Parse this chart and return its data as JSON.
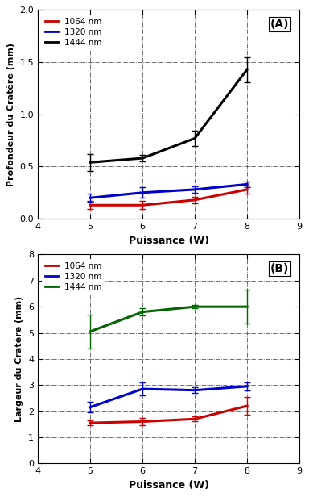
{
  "top_panel": {
    "title": "(A)",
    "ylabel": "Profondeur du Cratère (mm)",
    "xlabel": "Puissance (W)",
    "xlim": [
      4,
      9
    ],
    "ylim": [
      0,
      2
    ],
    "yticks": [
      0,
      0.5,
      1.0,
      1.5,
      2.0
    ],
    "xticks": [
      4,
      5,
      6,
      7,
      8,
      9
    ],
    "series": [
      {
        "label": "1064 nm",
        "color": "#cc0000",
        "x": [
          5,
          6,
          7,
          8
        ],
        "y": [
          0.13,
          0.13,
          0.18,
          0.28
        ],
        "yerr": [
          0.04,
          0.04,
          0.03,
          0.04
        ]
      },
      {
        "label": "1320 nm",
        "color": "#0000cc",
        "x": [
          5,
          6,
          7,
          8
        ],
        "y": [
          0.2,
          0.25,
          0.28,
          0.33
        ],
        "yerr": [
          0.04,
          0.05,
          0.03,
          0.03
        ]
      },
      {
        "label": "1444 nm",
        "color": "#000000",
        "x": [
          5,
          6,
          7,
          8
        ],
        "y": [
          0.54,
          0.58,
          0.77,
          1.43
        ],
        "yerr": [
          0.08,
          0.03,
          0.07,
          0.12
        ]
      }
    ]
  },
  "bottom_panel": {
    "title": "(B)",
    "ylabel": "Largeur du Cratère (mm)",
    "xlabel": "Puissance (W)",
    "xlim": [
      4,
      9
    ],
    "ylim": [
      0,
      8
    ],
    "yticks": [
      0,
      1,
      2,
      3,
      4,
      5,
      6,
      7,
      8
    ],
    "xticks": [
      4,
      5,
      6,
      7,
      8,
      9
    ],
    "series": [
      {
        "label": "1064 nm",
        "color": "#cc0000",
        "x": [
          5,
          6,
          7,
          8
        ],
        "y": [
          1.55,
          1.6,
          1.7,
          2.2
        ],
        "yerr": [
          0.1,
          0.15,
          0.1,
          0.35
        ]
      },
      {
        "label": "1320 nm",
        "color": "#0000cc",
        "x": [
          5,
          6,
          7,
          8
        ],
        "y": [
          2.15,
          2.85,
          2.8,
          2.95
        ],
        "yerr": [
          0.2,
          0.25,
          0.1,
          0.15
        ]
      },
      {
        "label": "1444 nm",
        "color": "#006600",
        "x": [
          5,
          6,
          7,
          8
        ],
        "y": [
          5.05,
          5.8,
          6.0,
          6.0
        ],
        "yerr": [
          0.65,
          0.15,
          0.07,
          0.65
        ]
      }
    ]
  },
  "background_color": "#ffffff",
  "grid_color": "#555555",
  "grid_linestyle": "-.",
  "grid_linewidth": 0.6,
  "line_width": 2.2,
  "capsize": 3,
  "elinewidth": 1.0
}
